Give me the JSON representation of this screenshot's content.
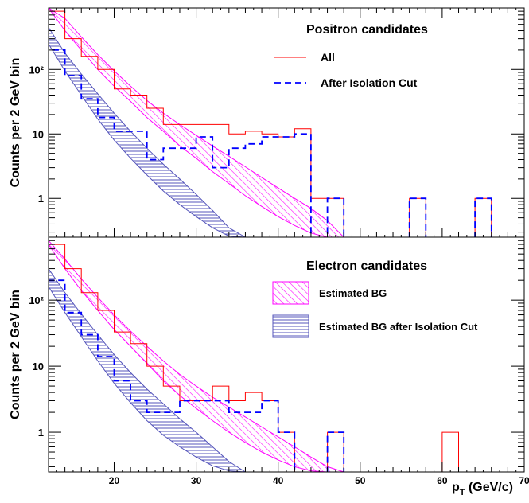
{
  "chart_data": [
    {
      "type": "line",
      "subtype": "histogram_with_bands",
      "panel": "top",
      "title": "Positron candidates",
      "xlabel": "",
      "ylabel": "Counts per 2 GeV bin",
      "xlim": [
        12,
        70
      ],
      "ylim": [
        0.25,
        900
      ],
      "yscale": "log",
      "y_tick_labels": [
        "1",
        "10",
        "10²"
      ],
      "y_ticks": [
        1,
        10,
        100
      ],
      "legend_title": "Positron candidates",
      "legend": [
        "All",
        "After Isolation Cut"
      ],
      "legend_position": "top-right",
      "series": [
        {
          "name": "All",
          "style": "solid",
          "color": "#ff0000",
          "bin_edges": [
            12,
            14,
            16,
            18,
            20,
            22,
            24,
            26,
            28,
            30,
            32,
            34,
            36,
            38,
            40,
            42,
            44,
            46,
            48,
            50,
            52,
            54,
            56,
            58,
            60,
            62,
            64,
            66,
            68,
            70
          ],
          "values": [
            800,
            300,
            160,
            100,
            50,
            40,
            25,
            14,
            14,
            14,
            14,
            10,
            11,
            10,
            9,
            12,
            1,
            1,
            0,
            0,
            0,
            0,
            1,
            0,
            0,
            0,
            1,
            0,
            0,
            0
          ]
        },
        {
          "name": "After Isolation Cut",
          "style": "dashed",
          "color": "#0000ff",
          "bin_edges": [
            12,
            14,
            16,
            18,
            20,
            22,
            24,
            26,
            28,
            30,
            32,
            34,
            36,
            38,
            40,
            42,
            44,
            46,
            48,
            50,
            52,
            54,
            56,
            58,
            60,
            62,
            64,
            66,
            68,
            70
          ],
          "values": [
            200,
            80,
            35,
            18,
            11,
            11,
            4,
            6,
            6,
            9,
            3,
            6,
            7,
            9,
            9,
            10,
            0,
            1,
            0,
            0,
            0,
            0,
            1,
            0,
            0,
            0,
            1,
            0,
            0,
            0
          ]
        }
      ],
      "bands": [
        {
          "kind": "Estimated BG",
          "color": "#ff00ff",
          "x": [
            12,
            14,
            16,
            18,
            20,
            22,
            24,
            26,
            28,
            30,
            32,
            34,
            36,
            38,
            40,
            42,
            44,
            46,
            48
          ],
          "lower": [
            900,
            400,
            200,
            100,
            55,
            32,
            18,
            11,
            6.5,
            4.2,
            2.6,
            1.7,
            1.1,
            0.75,
            0.52,
            0.38,
            0.29,
            0.25,
            0.25
          ],
          "upper": [
            900,
            620,
            320,
            170,
            95,
            55,
            33,
            21,
            14,
            9.5,
            6.5,
            4.5,
            3.1,
            2.1,
            1.45,
            1.0,
            0.7,
            0.45,
            0.25
          ]
        },
        {
          "kind": "Estimated BG after Isolation Cut",
          "color": "#5555bb",
          "x": [
            12,
            14,
            16,
            18,
            20,
            22,
            24,
            26,
            28,
            30,
            32,
            34,
            36
          ],
          "lower": [
            250,
            95,
            40,
            17,
            8,
            4.2,
            2.3,
            1.3,
            0.8,
            0.52,
            0.35,
            0.26,
            0.25
          ],
          "upper": [
            450,
            180,
            85,
            42,
            21,
            11,
            6,
            3.4,
            2.0,
            1.15,
            0.65,
            0.35,
            0.25
          ]
        }
      ]
    },
    {
      "type": "line",
      "subtype": "histogram_with_bands",
      "panel": "bottom",
      "title": "Electron candidates",
      "xlabel": "p_T (GeV/c)",
      "ylabel": "Counts per 2 GeV bin",
      "xlim": [
        12,
        70
      ],
      "ylim": [
        0.25,
        900
      ],
      "yscale": "log",
      "x_ticks": [
        20,
        30,
        40,
        50,
        60,
        70
      ],
      "x_tick_labels": [
        "20",
        "30",
        "40",
        "50",
        "60",
        "70"
      ],
      "y_tick_labels": [
        "1",
        "10",
        "10²"
      ],
      "y_ticks": [
        1,
        10,
        100
      ],
      "legend_title": "Electron candidates",
      "legend": [
        "Estimated BG",
        "Estimated BG after Isolation Cut"
      ],
      "legend_position": "top-right",
      "series": [
        {
          "name": "All",
          "style": "solid",
          "color": "#ff0000",
          "bin_edges": [
            12,
            14,
            16,
            18,
            20,
            22,
            24,
            26,
            28,
            30,
            32,
            34,
            36,
            38,
            40,
            42,
            44,
            46,
            48,
            50,
            52,
            54,
            56,
            58,
            60,
            62,
            64,
            66,
            68,
            70
          ],
          "values": [
            700,
            300,
            130,
            70,
            33,
            22,
            10,
            5,
            3,
            3,
            5,
            3,
            4,
            3,
            1,
            0,
            0,
            1,
            0,
            0,
            0,
            0,
            0,
            0,
            1,
            0,
            0,
            0,
            0,
            0
          ]
        },
        {
          "name": "After Isolation Cut",
          "style": "dashed",
          "color": "#0000ff",
          "bin_edges": [
            12,
            14,
            16,
            18,
            20,
            22,
            24,
            26,
            28,
            30,
            32,
            34,
            36,
            38,
            40,
            42,
            44,
            46,
            48,
            50,
            52,
            54,
            56,
            58,
            60,
            62,
            64,
            66,
            68,
            70
          ],
          "values": [
            200,
            65,
            30,
            14,
            6,
            3,
            2,
            2,
            3,
            3,
            3,
            2,
            2,
            3,
            1,
            0,
            0,
            1,
            0,
            0,
            0,
            0,
            0,
            0,
            0,
            0,
            0,
            0,
            0,
            0
          ]
        }
      ],
      "bands": [
        {
          "kind": "Estimated BG",
          "color": "#ff00ff",
          "x": [
            12,
            14,
            16,
            18,
            20,
            22,
            24,
            26,
            28,
            30,
            32,
            34,
            36,
            38,
            40,
            42,
            44,
            46,
            48
          ],
          "lower": [
            700,
            300,
            140,
            70,
            36,
            20,
            11,
            6,
            3.6,
            2.3,
            1.5,
            1.0,
            0.7,
            0.5,
            0.38,
            0.3,
            0.26,
            0.25,
            0.25
          ],
          "upper": [
            800,
            420,
            210,
            110,
            60,
            34,
            20,
            12,
            7.5,
            5,
            3.4,
            2.4,
            1.7,
            1.2,
            0.85,
            0.6,
            0.42,
            0.3,
            0.25
          ]
        },
        {
          "kind": "Estimated BG after Isolation Cut",
          "color": "#5555bb",
          "x": [
            12,
            14,
            16,
            18,
            20,
            22,
            24,
            26,
            28,
            30,
            32,
            34,
            36
          ],
          "lower": [
            160,
            65,
            28,
            12,
            5.5,
            2.8,
            1.5,
            0.9,
            0.6,
            0.42,
            0.31,
            0.26,
            0.25
          ],
          "upper": [
            300,
            130,
            62,
            30,
            15,
            8,
            4.5,
            2.7,
            1.6,
            1.0,
            0.6,
            0.36,
            0.25
          ]
        }
      ]
    }
  ]
}
